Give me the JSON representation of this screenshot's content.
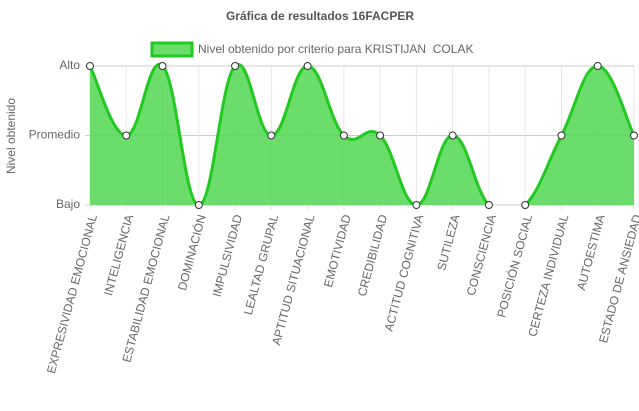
{
  "chart_data": {
    "type": "area",
    "title": "Gráfica de resultados 16FACPER",
    "ylabel": "Nivel obtenido",
    "categories": [
      "EXPRESIVIDAD EMOCIONAL",
      "INTELIGENCIA",
      "ESTABILIDAD EMOCIONAL",
      "DOMINACIÓN",
      "IMPULSIVIDAD",
      "LEALTAD GRUPAL",
      "APTITUD SITUACIONAL",
      "EMOTIVIDAD",
      "CREDIBILIDAD",
      "ACTITUD COGNITIVA",
      "SUTILEZA",
      "CONSCIENCIA",
      "POSICIÓN SOCIAL",
      "CERTEZA INDIVIDUAL",
      "AUTOESTIMA",
      "ESTADO DE ANSIEDAD"
    ],
    "series": [
      {
        "name": "Nivel obtenido por criterio para KRISTIJAN  COLAK",
        "color": "#22c922",
        "fill": "rgba(80, 215, 80, 0.85)",
        "values": [
          3,
          2,
          3,
          1,
          3,
          2,
          3,
          2,
          2,
          1,
          2,
          1,
          1,
          2,
          3,
          2
        ]
      }
    ],
    "ylim": [
      1,
      3
    ],
    "yticks": [
      {
        "value": 1,
        "label": "Bajo"
      },
      {
        "value": 2,
        "label": "Promedio"
      },
      {
        "value": 3,
        "label": "Alto"
      }
    ],
    "grid": true
  }
}
